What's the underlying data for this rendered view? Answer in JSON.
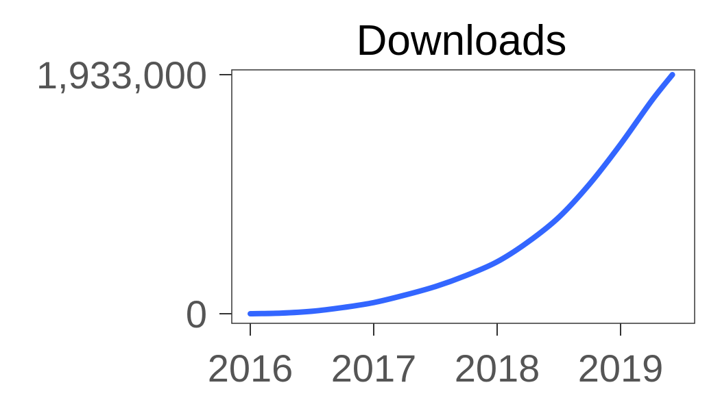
{
  "chart_data": {
    "type": "line",
    "title": "Downloads",
    "xlabel": "",
    "ylabel": "",
    "x_ticks": [
      "2016",
      "2017",
      "2018",
      "2019"
    ],
    "y_ticks": [
      "0",
      "1,933,000"
    ],
    "ylim": [
      0,
      1933000
    ],
    "xlim": [
      2016,
      2019.5
    ],
    "grid": false,
    "series": [
      {
        "color": "#3366ff",
        "x": [
          2016.0,
          2016.25,
          2016.5,
          2016.75,
          2017.0,
          2017.25,
          2017.5,
          2017.75,
          2018.0,
          2018.25,
          2018.5,
          2018.75,
          2019.0,
          2019.25,
          2019.42
        ],
        "y": [
          0,
          5000,
          20000,
          50000,
          90000,
          150000,
          220000,
          310000,
          420000,
          580000,
          780000,
          1050000,
          1370000,
          1720000,
          1933000
        ]
      }
    ]
  }
}
